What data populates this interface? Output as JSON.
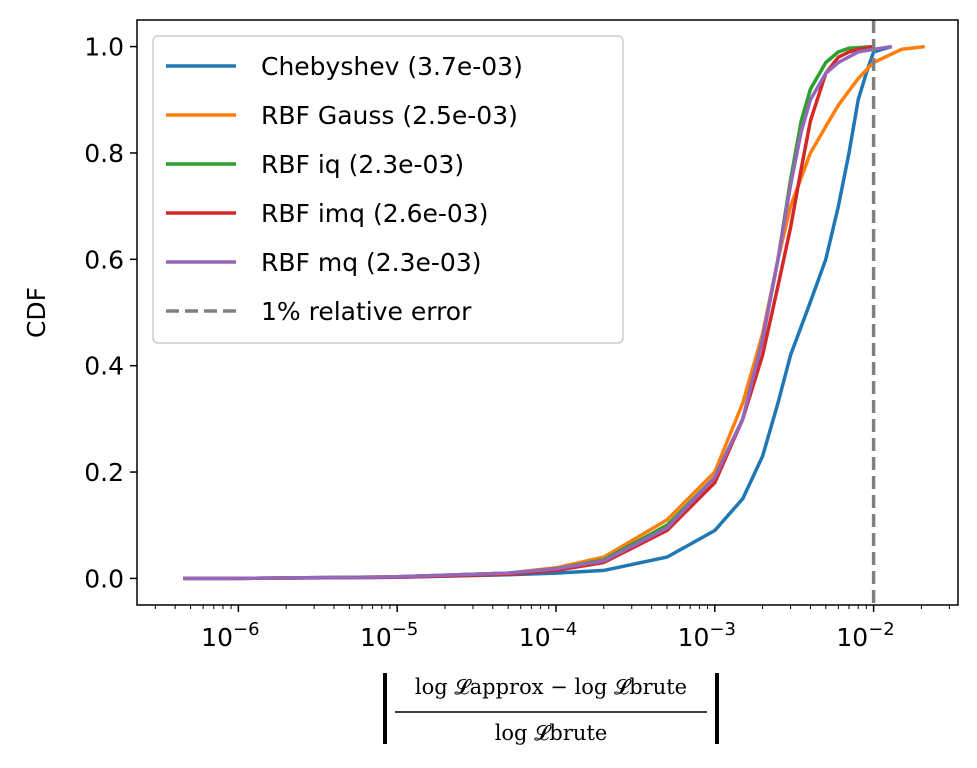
{
  "chart_data": {
    "type": "line",
    "title": "",
    "xlabel": {
      "numerator": "log 𝓛approx − log 𝓛brute",
      "denominator": "log 𝓛brute"
    },
    "ylabel": "CDF",
    "xscale": "log",
    "xlim": [
      2.3e-07,
      0.034
    ],
    "ylim": [
      -0.05,
      1.05
    ],
    "grid": false,
    "legend_position": "upper-left",
    "x_ticks": [
      {
        "value": 1e-06,
        "base": "10",
        "exp": "−6"
      },
      {
        "value": 1e-05,
        "base": "10",
        "exp": "−5"
      },
      {
        "value": 0.0001,
        "base": "10",
        "exp": "−4"
      },
      {
        "value": 0.001,
        "base": "10",
        "exp": "−3"
      },
      {
        "value": 0.01,
        "base": "10",
        "exp": "−2"
      }
    ],
    "y_ticks": [
      "0.0",
      "0.2",
      "0.4",
      "0.6",
      "0.8",
      "1.0"
    ],
    "series": [
      {
        "name": "Chebyshev (3.7e-03)",
        "color": "#1f77b4",
        "x": [
          4.5e-07,
          1e-06,
          1e-05,
          5e-05,
          0.0001,
          0.0002,
          0.0005,
          0.001,
          0.0015,
          0.002,
          0.0025,
          0.003,
          0.004,
          0.005,
          0.006,
          0.007,
          0.008,
          0.009,
          0.01,
          0.013
        ],
        "y": [
          0,
          0,
          0.002,
          0.007,
          0.01,
          0.015,
          0.04,
          0.09,
          0.15,
          0.23,
          0.33,
          0.42,
          0.52,
          0.6,
          0.7,
          0.8,
          0.9,
          0.95,
          0.99,
          1.0
        ]
      },
      {
        "name": "RBF Gauss (2.5e-03)",
        "color": "#ff7f0e",
        "x": [
          4.5e-07,
          1e-06,
          1e-05,
          5e-05,
          0.0001,
          0.0002,
          0.0005,
          0.001,
          0.0015,
          0.002,
          0.0025,
          0.003,
          0.004,
          0.005,
          0.006,
          0.008,
          0.01,
          0.015,
          0.021
        ],
        "y": [
          0,
          0,
          0.003,
          0.01,
          0.02,
          0.04,
          0.11,
          0.2,
          0.33,
          0.46,
          0.6,
          0.7,
          0.8,
          0.85,
          0.89,
          0.94,
          0.97,
          0.995,
          1.0
        ]
      },
      {
        "name": "RBF iq (2.3e-03)",
        "color": "#2ca02c",
        "x": [
          4.5e-07,
          1e-06,
          1e-05,
          5e-05,
          0.0001,
          0.0002,
          0.0005,
          0.001,
          0.0015,
          0.002,
          0.0025,
          0.003,
          0.0035,
          0.004,
          0.005,
          0.006,
          0.007,
          0.01
        ],
        "y": [
          0,
          0,
          0.003,
          0.01,
          0.018,
          0.035,
          0.1,
          0.19,
          0.3,
          0.45,
          0.6,
          0.75,
          0.86,
          0.92,
          0.97,
          0.99,
          0.997,
          1.0
        ]
      },
      {
        "name": "RBF imq (2.6e-03)",
        "color": "#d62728",
        "x": [
          4.5e-07,
          1e-06,
          1e-05,
          5e-05,
          0.0001,
          0.0002,
          0.0005,
          0.001,
          0.0015,
          0.002,
          0.0025,
          0.003,
          0.0035,
          0.004,
          0.005,
          0.006,
          0.007,
          0.008,
          0.01
        ],
        "y": [
          0,
          0,
          0.002,
          0.008,
          0.015,
          0.03,
          0.09,
          0.18,
          0.3,
          0.42,
          0.55,
          0.66,
          0.77,
          0.86,
          0.95,
          0.98,
          0.99,
          0.995,
          1.0
        ]
      },
      {
        "name": "RBF mq (2.3e-03)",
        "color": "#9467bd",
        "x": [
          4.5e-07,
          1e-06,
          1e-05,
          5e-05,
          0.0001,
          0.0002,
          0.0005,
          0.001,
          0.0015,
          0.002,
          0.0025,
          0.003,
          0.0035,
          0.004,
          0.005,
          0.006,
          0.008,
          0.01,
          0.013
        ],
        "y": [
          0,
          0,
          0.003,
          0.01,
          0.018,
          0.033,
          0.095,
          0.19,
          0.3,
          0.45,
          0.6,
          0.74,
          0.84,
          0.9,
          0.95,
          0.97,
          0.99,
          0.995,
          1.0
        ]
      }
    ],
    "reference_line": {
      "name": "1% relative error",
      "x": 0.01,
      "color": "#808080",
      "style": "dashed"
    }
  }
}
